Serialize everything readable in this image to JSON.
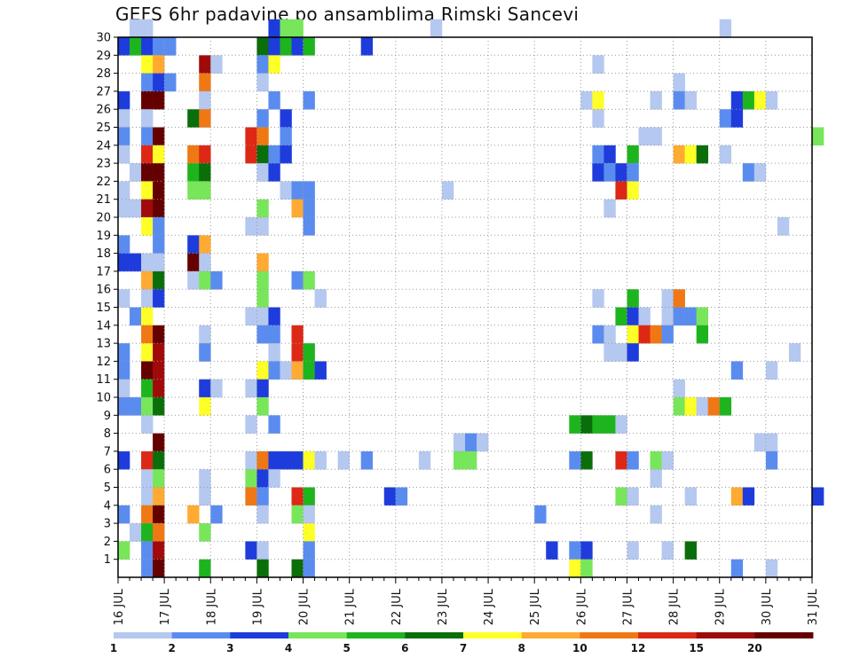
{
  "chart_data": {
    "type": "heatmap",
    "title": "GEFS 6hr padavine po ansamblima Rimski Sancevi",
    "xlabel": "",
    "ylabel": "",
    "x_ticks": [
      "16 JUL",
      "17 JUL",
      "18 JUL",
      "19 JUL",
      "20 JUL",
      "21 JUL",
      "22 JUL",
      "23 JUL",
      "24 JUL",
      "25 JUL",
      "26 JUL",
      "27 JUL",
      "28 JUL",
      "29 JUL",
      "30 JUL",
      "31 JUL"
    ],
    "x_range": [
      0,
      60
    ],
    "x_unit": "6-hour steps from 16 JUL 00Z",
    "y_ticks": [
      "1",
      "2",
      "3",
      "4",
      "5",
      "6",
      "7",
      "8",
      "9",
      "10",
      "11",
      "12",
      "13",
      "14",
      "15",
      "16",
      "17",
      "18",
      "19",
      "20",
      "21",
      "22",
      "23",
      "24",
      "25",
      "26",
      "27",
      "28",
      "29",
      "30"
    ],
    "y_range": [
      0,
      30
    ],
    "grid": true,
    "legend": {
      "placement": "bottom",
      "labels": [
        "1",
        "2",
        "3",
        "4",
        "5",
        "6",
        "7",
        "8",
        "10",
        "12",
        "15",
        "20"
      ],
      "colors": [
        "#b4c8f0",
        "#5a8cf0",
        "#1e3cdc",
        "#78e65a",
        "#1eb41e",
        "#0a6e0a",
        "#ffff28",
        "#ffaa32",
        "#f07814",
        "#dc2814",
        "#a00a0a",
        "#640000"
      ]
    },
    "cells": [
      [
        1,
        30,
        1
      ],
      [
        2,
        30,
        1
      ],
      [
        13,
        30,
        3
      ],
      [
        14,
        30,
        4
      ],
      [
        15,
        30,
        4
      ],
      [
        27,
        30,
        1
      ],
      [
        52,
        30,
        1
      ],
      [
        0,
        29,
        3
      ],
      [
        1,
        29,
        5
      ],
      [
        2,
        29,
        3
      ],
      [
        3,
        29,
        2
      ],
      [
        4,
        29,
        2
      ],
      [
        12,
        29,
        6
      ],
      [
        13,
        29,
        3
      ],
      [
        14,
        29,
        5
      ],
      [
        15,
        29,
        3
      ],
      [
        16,
        29,
        5
      ],
      [
        21,
        29,
        3
      ],
      [
        2,
        28,
        7
      ],
      [
        3,
        28,
        8
      ],
      [
        7,
        28,
        11
      ],
      [
        8,
        28,
        1
      ],
      [
        12,
        28,
        2
      ],
      [
        13,
        28,
        7
      ],
      [
        41,
        28,
        1
      ],
      [
        2,
        27,
        2
      ],
      [
        3,
        27,
        3
      ],
      [
        4,
        27,
        2
      ],
      [
        7,
        27,
        9
      ],
      [
        12,
        27,
        1
      ],
      [
        48,
        27,
        1
      ],
      [
        0,
        26,
        3
      ],
      [
        2,
        26,
        12
      ],
      [
        3,
        26,
        12
      ],
      [
        7,
        26,
        1
      ],
      [
        13,
        26,
        2
      ],
      [
        16,
        26,
        2
      ],
      [
        40,
        26,
        1
      ],
      [
        41,
        26,
        7
      ],
      [
        46,
        26,
        1
      ],
      [
        48,
        26,
        2
      ],
      [
        49,
        26,
        1
      ],
      [
        53,
        26,
        3
      ],
      [
        54,
        26,
        5
      ],
      [
        55,
        26,
        7
      ],
      [
        56,
        26,
        1
      ],
      [
        0,
        25,
        1
      ],
      [
        2,
        25,
        1
      ],
      [
        6,
        25,
        6
      ],
      [
        7,
        25,
        9
      ],
      [
        12,
        25,
        2
      ],
      [
        14,
        25,
        3
      ],
      [
        41,
        25,
        1
      ],
      [
        52,
        25,
        2
      ],
      [
        53,
        25,
        3
      ],
      [
        0,
        24,
        2
      ],
      [
        2,
        24,
        2
      ],
      [
        3,
        24,
        12
      ],
      [
        11,
        24,
        10
      ],
      [
        12,
        24,
        9
      ],
      [
        14,
        24,
        2
      ],
      [
        45,
        24,
        1
      ],
      [
        46,
        24,
        1
      ],
      [
        60,
        24,
        4
      ],
      [
        0,
        23,
        1
      ],
      [
        2,
        23,
        10
      ],
      [
        3,
        23,
        7
      ],
      [
        6,
        23,
        9
      ],
      [
        7,
        23,
        10
      ],
      [
        11,
        23,
        10
      ],
      [
        12,
        23,
        6
      ],
      [
        13,
        23,
        2
      ],
      [
        14,
        23,
        3
      ],
      [
        41,
        23,
        2
      ],
      [
        42,
        23,
        3
      ],
      [
        44,
        23,
        5
      ],
      [
        48,
        23,
        8
      ],
      [
        49,
        23,
        7
      ],
      [
        50,
        23,
        6
      ],
      [
        52,
        23,
        1
      ],
      [
        1,
        22,
        1
      ],
      [
        2,
        22,
        12
      ],
      [
        3,
        22,
        12
      ],
      [
        6,
        22,
        5
      ],
      [
        7,
        22,
        6
      ],
      [
        12,
        22,
        1
      ],
      [
        13,
        22,
        3
      ],
      [
        41,
        22,
        3
      ],
      [
        42,
        22,
        2
      ],
      [
        43,
        22,
        3
      ],
      [
        44,
        22,
        2
      ],
      [
        54,
        22,
        2
      ],
      [
        55,
        22,
        1
      ],
      [
        0,
        21,
        1
      ],
      [
        2,
        21,
        7
      ],
      [
        3,
        21,
        12
      ],
      [
        6,
        21,
        4
      ],
      [
        7,
        21,
        4
      ],
      [
        14,
        21,
        1
      ],
      [
        15,
        21,
        2
      ],
      [
        16,
        21,
        2
      ],
      [
        28,
        21,
        1
      ],
      [
        43,
        21,
        10
      ],
      [
        44,
        21,
        7
      ],
      [
        0,
        20,
        1
      ],
      [
        1,
        20,
        1
      ],
      [
        2,
        20,
        11
      ],
      [
        3,
        20,
        12
      ],
      [
        12,
        20,
        4
      ],
      [
        15,
        20,
        8
      ],
      [
        16,
        20,
        2
      ],
      [
        42,
        20,
        1
      ],
      [
        2,
        19,
        7
      ],
      [
        3,
        19,
        2
      ],
      [
        11,
        19,
        1
      ],
      [
        12,
        19,
        1
      ],
      [
        16,
        19,
        2
      ],
      [
        57,
        19,
        1
      ],
      [
        0,
        18,
        2
      ],
      [
        3,
        18,
        2
      ],
      [
        6,
        18,
        3
      ],
      [
        7,
        18,
        8
      ],
      [
        0,
        17,
        3
      ],
      [
        1,
        17,
        3
      ],
      [
        2,
        17,
        1
      ],
      [
        3,
        17,
        1
      ],
      [
        6,
        17,
        12
      ],
      [
        7,
        17,
        1
      ],
      [
        12,
        17,
        8
      ],
      [
        2,
        16,
        8
      ],
      [
        3,
        16,
        6
      ],
      [
        6,
        16,
        1
      ],
      [
        7,
        16,
        4
      ],
      [
        8,
        16,
        2
      ],
      [
        12,
        16,
        4
      ],
      [
        15,
        16,
        2
      ],
      [
        16,
        16,
        4
      ],
      [
        0,
        15,
        1
      ],
      [
        2,
        15,
        1
      ],
      [
        3,
        15,
        3
      ],
      [
        12,
        15,
        4
      ],
      [
        17,
        15,
        1
      ],
      [
        41,
        15,
        1
      ],
      [
        44,
        15,
        5
      ],
      [
        47,
        15,
        1
      ],
      [
        48,
        15,
        9
      ],
      [
        1,
        14,
        2
      ],
      [
        2,
        14,
        7
      ],
      [
        11,
        14,
        1
      ],
      [
        12,
        14,
        1
      ],
      [
        13,
        14,
        3
      ],
      [
        43,
        14,
        5
      ],
      [
        44,
        14,
        3
      ],
      [
        45,
        14,
        1
      ],
      [
        47,
        14,
        1
      ],
      [
        48,
        14,
        2
      ],
      [
        49,
        14,
        2
      ],
      [
        50,
        14,
        4
      ],
      [
        2,
        13,
        9
      ],
      [
        3,
        13,
        12
      ],
      [
        7,
        13,
        1
      ],
      [
        12,
        13,
        2
      ],
      [
        13,
        13,
        2
      ],
      [
        15,
        13,
        10
      ],
      [
        41,
        13,
        2
      ],
      [
        42,
        13,
        1
      ],
      [
        44,
        13,
        7
      ],
      [
        45,
        13,
        10
      ],
      [
        46,
        13,
        9
      ],
      [
        47,
        13,
        2
      ],
      [
        50,
        13,
        5
      ],
      [
        0,
        12,
        2
      ],
      [
        2,
        12,
        7
      ],
      [
        3,
        12,
        11
      ],
      [
        7,
        12,
        2
      ],
      [
        13,
        12,
        1
      ],
      [
        15,
        12,
        10
      ],
      [
        16,
        12,
        5
      ],
      [
        42,
        12,
        1
      ],
      [
        43,
        12,
        1
      ],
      [
        44,
        12,
        3
      ],
      [
        58,
        12,
        1
      ],
      [
        0,
        11,
        2
      ],
      [
        2,
        11,
        12
      ],
      [
        3,
        11,
        11
      ],
      [
        12,
        11,
        7
      ],
      [
        13,
        11,
        2
      ],
      [
        14,
        11,
        1
      ],
      [
        15,
        11,
        8
      ],
      [
        16,
        11,
        5
      ],
      [
        17,
        11,
        3
      ],
      [
        53,
        11,
        2
      ],
      [
        56,
        11,
        1
      ],
      [
        0,
        10,
        1
      ],
      [
        2,
        10,
        5
      ],
      [
        3,
        10,
        11
      ],
      [
        7,
        10,
        3
      ],
      [
        8,
        10,
        1
      ],
      [
        11,
        10,
        1
      ],
      [
        12,
        10,
        3
      ],
      [
        48,
        10,
        1
      ],
      [
        0,
        9,
        2
      ],
      [
        1,
        9,
        2
      ],
      [
        2,
        9,
        4
      ],
      [
        3,
        9,
        6
      ],
      [
        7,
        9,
        7
      ],
      [
        12,
        9,
        4
      ],
      [
        48,
        9,
        4
      ],
      [
        49,
        9,
        7
      ],
      [
        50,
        9,
        1
      ],
      [
        51,
        9,
        9
      ],
      [
        52,
        9,
        5
      ],
      [
        2,
        8,
        1
      ],
      [
        11,
        8,
        1
      ],
      [
        13,
        8,
        2
      ],
      [
        39,
        8,
        5
      ],
      [
        40,
        8,
        6
      ],
      [
        41,
        8,
        5
      ],
      [
        42,
        8,
        5
      ],
      [
        43,
        8,
        1
      ],
      [
        3,
        7,
        12
      ],
      [
        29,
        7,
        1
      ],
      [
        30,
        7,
        2
      ],
      [
        31,
        7,
        1
      ],
      [
        55,
        7,
        1
      ],
      [
        56,
        7,
        1
      ],
      [
        0,
        6,
        3
      ],
      [
        2,
        6,
        10
      ],
      [
        3,
        6,
        6
      ],
      [
        11,
        6,
        1
      ],
      [
        12,
        6,
        9
      ],
      [
        13,
        6,
        3
      ],
      [
        14,
        6,
        3
      ],
      [
        15,
        6,
        3
      ],
      [
        16,
        6,
        7
      ],
      [
        17,
        6,
        1
      ],
      [
        19,
        6,
        1
      ],
      [
        21,
        6,
        2
      ],
      [
        26,
        6,
        1
      ],
      [
        29,
        6,
        4
      ],
      [
        30,
        6,
        4
      ],
      [
        39,
        6,
        2
      ],
      [
        40,
        6,
        6
      ],
      [
        43,
        6,
        10
      ],
      [
        44,
        6,
        2
      ],
      [
        46,
        6,
        4
      ],
      [
        47,
        6,
        1
      ],
      [
        56,
        6,
        2
      ],
      [
        2,
        5,
        1
      ],
      [
        3,
        5,
        4
      ],
      [
        7,
        5,
        1
      ],
      [
        11,
        5,
        4
      ],
      [
        12,
        5,
        3
      ],
      [
        13,
        5,
        1
      ],
      [
        46,
        5,
        1
      ],
      [
        2,
        4,
        1
      ],
      [
        3,
        4,
        8
      ],
      [
        7,
        4,
        1
      ],
      [
        11,
        4,
        9
      ],
      [
        12,
        4,
        2
      ],
      [
        15,
        4,
        10
      ],
      [
        16,
        4,
        5
      ],
      [
        23,
        4,
        3
      ],
      [
        24,
        4,
        2
      ],
      [
        43,
        4,
        4
      ],
      [
        44,
        4,
        1
      ],
      [
        49,
        4,
        1
      ],
      [
        53,
        4,
        8
      ],
      [
        54,
        4,
        3
      ],
      [
        60,
        4,
        3
      ],
      [
        0,
        3,
        2
      ],
      [
        2,
        3,
        9
      ],
      [
        3,
        3,
        12
      ],
      [
        6,
        3,
        8
      ],
      [
        8,
        3,
        2
      ],
      [
        12,
        3,
        1
      ],
      [
        15,
        3,
        4
      ],
      [
        16,
        3,
        1
      ],
      [
        36,
        3,
        2
      ],
      [
        46,
        3,
        1
      ],
      [
        1,
        2,
        1
      ],
      [
        2,
        2,
        5
      ],
      [
        3,
        2,
        9
      ],
      [
        7,
        2,
        4
      ],
      [
        16,
        2,
        7
      ],
      [
        0,
        1,
        4
      ],
      [
        2,
        1,
        2
      ],
      [
        3,
        1,
        11
      ],
      [
        11,
        1,
        3
      ],
      [
        12,
        1,
        1
      ],
      [
        16,
        1,
        2
      ],
      [
        37,
        1,
        3
      ],
      [
        39,
        1,
        2
      ],
      [
        40,
        1,
        3
      ],
      [
        44,
        1,
        1
      ],
      [
        47,
        1,
        1
      ],
      [
        49,
        1,
        6
      ],
      [
        2,
        0,
        2
      ],
      [
        3,
        0,
        12
      ],
      [
        7,
        0,
        5
      ],
      [
        12,
        0,
        6
      ],
      [
        15,
        0,
        6
      ],
      [
        16,
        0,
        2
      ],
      [
        39,
        0,
        7
      ],
      [
        40,
        0,
        4
      ],
      [
        53,
        0,
        2
      ],
      [
        56,
        0,
        1
      ]
    ]
  }
}
